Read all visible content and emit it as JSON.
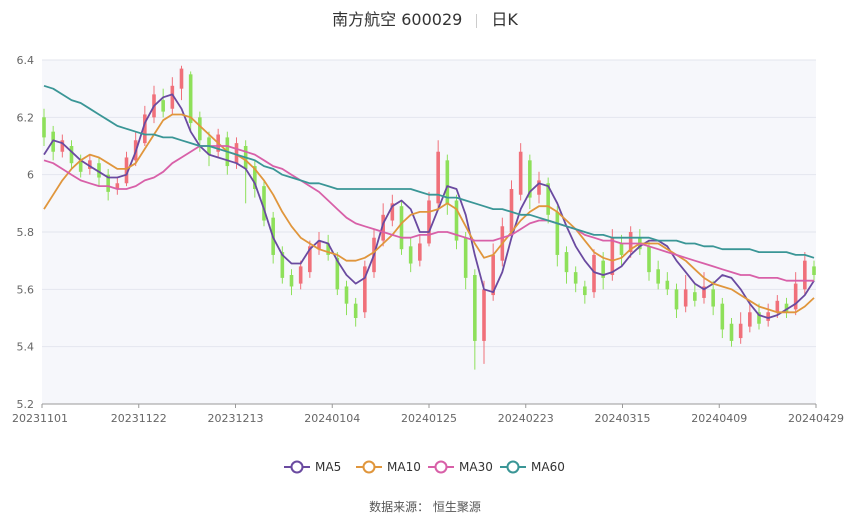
{
  "header": {
    "title": "南方航空 600029",
    "period": "日K"
  },
  "source": {
    "label": "数据来源：",
    "value": "恒生聚源"
  },
  "colors": {
    "up": "#f0707a",
    "down": "#8ee05a",
    "MA5": "#6a4aa0",
    "MA10": "#e0963c",
    "MA30": "#d860a8",
    "MA60": "#3a9696",
    "plot_bg": "#f6f7fb",
    "grid": "#e3e6ee"
  },
  "chart_data": {
    "type": "candlestick",
    "title": "南方航空 600029",
    "period": "日K",
    "x_labels": [
      "20231101",
      "20231122",
      "20231213",
      "20240104",
      "20240125",
      "20240223",
      "20240315",
      "20240409",
      "20240429"
    ],
    "ylim": [
      5.2,
      6.4
    ],
    "y_ticks": [
      "5.2",
      "5.4",
      "5.6",
      "5.8",
      "6",
      "6.2",
      "6.4"
    ],
    "grid": true,
    "legend_position": "bottom",
    "series": [
      {
        "name": "MA5",
        "values": [
          6.07,
          6.12,
          6.11,
          6.08,
          6.05,
          6.03,
          6.01,
          5.99,
          5.99,
          6.0,
          6.08,
          6.18,
          6.24,
          6.27,
          6.28,
          6.23,
          6.15,
          6.1,
          6.07,
          6.06,
          6.05,
          6.04,
          6.02,
          5.97,
          5.88,
          5.78,
          5.72,
          5.69,
          5.69,
          5.74,
          5.77,
          5.76,
          5.7,
          5.65,
          5.62,
          5.64,
          5.72,
          5.83,
          5.89,
          5.91,
          5.88,
          5.8,
          5.8,
          5.88,
          5.96,
          5.95,
          5.86,
          5.72,
          5.6,
          5.59,
          5.66,
          5.78,
          5.88,
          5.94,
          5.97,
          5.96,
          5.9,
          5.82,
          5.75,
          5.7,
          5.66,
          5.65,
          5.66,
          5.68,
          5.72,
          5.75,
          5.77,
          5.77,
          5.75,
          5.7,
          5.66,
          5.62,
          5.6,
          5.62,
          5.65,
          5.64,
          5.6,
          5.55,
          5.51,
          5.5,
          5.51,
          5.53,
          5.55,
          5.58,
          5.63
        ]
      },
      {
        "name": "MA10",
        "values": [
          5.88,
          5.93,
          5.98,
          6.02,
          6.05,
          6.07,
          6.06,
          6.04,
          6.02,
          6.02,
          6.04,
          6.09,
          6.14,
          6.19,
          6.21,
          6.21,
          6.2,
          6.17,
          6.14,
          6.11,
          6.08,
          6.07,
          6.05,
          6.02,
          5.98,
          5.93,
          5.87,
          5.82,
          5.78,
          5.76,
          5.74,
          5.73,
          5.72,
          5.7,
          5.7,
          5.71,
          5.73,
          5.76,
          5.79,
          5.83,
          5.86,
          5.87,
          5.87,
          5.88,
          5.9,
          5.88,
          5.82,
          5.76,
          5.71,
          5.72,
          5.76,
          5.8,
          5.84,
          5.87,
          5.89,
          5.89,
          5.87,
          5.84,
          5.81,
          5.77,
          5.73,
          5.71,
          5.7,
          5.71,
          5.74,
          5.76,
          5.76,
          5.76,
          5.74,
          5.72,
          5.7,
          5.67,
          5.64,
          5.62,
          5.61,
          5.6,
          5.58,
          5.56,
          5.54,
          5.53,
          5.52,
          5.52,
          5.52,
          5.54,
          5.57
        ]
      },
      {
        "name": "MA30",
        "values": [
          6.05,
          6.04,
          6.02,
          6.0,
          5.98,
          5.97,
          5.96,
          5.96,
          5.95,
          5.95,
          5.96,
          5.98,
          5.99,
          6.01,
          6.04,
          6.06,
          6.08,
          6.1,
          6.1,
          6.1,
          6.1,
          6.09,
          6.08,
          6.07,
          6.05,
          6.03,
          6.02,
          6.0,
          5.98,
          5.96,
          5.94,
          5.91,
          5.88,
          5.85,
          5.83,
          5.82,
          5.81,
          5.8,
          5.79,
          5.78,
          5.78,
          5.79,
          5.79,
          5.8,
          5.8,
          5.79,
          5.78,
          5.77,
          5.77,
          5.77,
          5.78,
          5.79,
          5.81,
          5.83,
          5.84,
          5.84,
          5.83,
          5.82,
          5.81,
          5.79,
          5.78,
          5.77,
          5.77,
          5.76,
          5.76,
          5.76,
          5.75,
          5.74,
          5.73,
          5.72,
          5.71,
          5.7,
          5.69,
          5.68,
          5.67,
          5.66,
          5.65,
          5.65,
          5.64,
          5.64,
          5.64,
          5.63,
          5.63,
          5.63,
          5.63
        ]
      },
      {
        "name": "MA60",
        "values": [
          6.31,
          6.3,
          6.28,
          6.26,
          6.25,
          6.23,
          6.21,
          6.19,
          6.17,
          6.16,
          6.15,
          6.14,
          6.14,
          6.13,
          6.13,
          6.12,
          6.11,
          6.1,
          6.1,
          6.09,
          6.08,
          6.07,
          6.06,
          6.05,
          6.03,
          6.02,
          6.0,
          5.99,
          5.98,
          5.97,
          5.97,
          5.96,
          5.95,
          5.95,
          5.95,
          5.95,
          5.95,
          5.95,
          5.95,
          5.95,
          5.95,
          5.94,
          5.93,
          5.93,
          5.92,
          5.92,
          5.91,
          5.9,
          5.89,
          5.88,
          5.88,
          5.87,
          5.86,
          5.86,
          5.85,
          5.84,
          5.83,
          5.82,
          5.81,
          5.8,
          5.79,
          5.79,
          5.78,
          5.78,
          5.78,
          5.78,
          5.78,
          5.77,
          5.77,
          5.77,
          5.76,
          5.76,
          5.75,
          5.75,
          5.74,
          5.74,
          5.74,
          5.74,
          5.73,
          5.73,
          5.73,
          5.73,
          5.72,
          5.72,
          5.71
        ]
      }
    ],
    "candles": [
      [
        6.2,
        6.13,
        6.23,
        6.1
      ],
      [
        6.15,
        6.08,
        6.17,
        6.05
      ],
      [
        6.08,
        6.12,
        6.14,
        6.06
      ],
      [
        6.1,
        6.04,
        6.12,
        6.02
      ],
      [
        6.05,
        6.01,
        6.07,
        5.99
      ],
      [
        6.02,
        6.05,
        6.07,
        6.0
      ],
      [
        6.04,
        5.99,
        6.06,
        5.96
      ],
      [
        6.0,
        5.94,
        6.02,
        5.91
      ],
      [
        5.95,
        5.97,
        5.99,
        5.93
      ],
      [
        5.97,
        6.06,
        6.08,
        5.96
      ],
      [
        6.05,
        6.12,
        6.15,
        6.03
      ],
      [
        6.11,
        6.21,
        6.24,
        6.1
      ],
      [
        6.2,
        6.28,
        6.31,
        6.18
      ],
      [
        6.26,
        6.22,
        6.3,
        6.2
      ],
      [
        6.23,
        6.31,
        6.34,
        6.21
      ],
      [
        6.3,
        6.37,
        6.38,
        6.26
      ],
      [
        6.35,
        6.18,
        6.36,
        6.15
      ],
      [
        6.2,
        6.12,
        6.22,
        6.08
      ],
      [
        6.13,
        6.07,
        6.15,
        6.03
      ],
      [
        6.08,
        6.14,
        6.16,
        6.06
      ],
      [
        6.13,
        6.03,
        6.15,
        6.0
      ],
      [
        6.04,
        6.11,
        6.13,
        6.02
      ],
      [
        6.1,
        6.02,
        6.12,
        5.9
      ],
      [
        6.03,
        5.95,
        6.05,
        5.92
      ],
      [
        5.96,
        5.84,
        5.98,
        5.82
      ],
      [
        5.85,
        5.72,
        5.87,
        5.69
      ],
      [
        5.73,
        5.64,
        5.75,
        5.62
      ],
      [
        5.65,
        5.61,
        5.67,
        5.58
      ],
      [
        5.62,
        5.68,
        5.7,
        5.6
      ],
      [
        5.66,
        5.75,
        5.77,
        5.64
      ],
      [
        5.74,
        5.77,
        5.8,
        5.72
      ],
      [
        5.76,
        5.72,
        5.79,
        5.7
      ],
      [
        5.71,
        5.6,
        5.73,
        5.58
      ],
      [
        5.61,
        5.55,
        5.63,
        5.51
      ],
      [
        5.55,
        5.5,
        5.57,
        5.47
      ],
      [
        5.52,
        5.68,
        5.7,
        5.5
      ],
      [
        5.66,
        5.78,
        5.81,
        5.64
      ],
      [
        5.77,
        5.86,
        5.9,
        5.75
      ],
      [
        5.84,
        5.9,
        5.93,
        5.82
      ],
      [
        5.89,
        5.74,
        5.91,
        5.72
      ],
      [
        5.75,
        5.69,
        5.78,
        5.66
      ],
      [
        5.7,
        5.76,
        5.79,
        5.68
      ],
      [
        5.76,
        5.91,
        5.94,
        5.75
      ],
      [
        5.9,
        6.08,
        6.12,
        5.88
      ],
      [
        6.05,
        5.9,
        6.07,
        5.86
      ],
      [
        5.91,
        5.77,
        5.93,
        5.74
      ],
      [
        5.78,
        5.64,
        5.8,
        5.6
      ],
      [
        5.65,
        5.42,
        5.67,
        5.32
      ],
      [
        5.42,
        5.6,
        5.63,
        5.34
      ],
      [
        5.58,
        5.72,
        5.76,
        5.56
      ],
      [
        5.7,
        5.82,
        5.85,
        5.68
      ],
      [
        5.8,
        5.95,
        5.98,
        5.78
      ],
      [
        5.93,
        6.08,
        6.11,
        5.91
      ],
      [
        6.05,
        5.92,
        6.07,
        5.88
      ],
      [
        5.93,
        5.98,
        6.01,
        5.9
      ],
      [
        5.97,
        5.86,
        5.99,
        5.83
      ],
      [
        5.87,
        5.72,
        5.89,
        5.68
      ],
      [
        5.73,
        5.66,
        5.75,
        5.62
      ],
      [
        5.66,
        5.62,
        5.68,
        5.59
      ],
      [
        5.61,
        5.58,
        5.63,
        5.55
      ],
      [
        5.59,
        5.72,
        5.74,
        5.57
      ],
      [
        5.7,
        5.64,
        5.73,
        5.6
      ],
      [
        5.65,
        5.78,
        5.81,
        5.63
      ],
      [
        5.76,
        5.72,
        5.79,
        5.68
      ],
      [
        5.73,
        5.8,
        5.82,
        5.71
      ],
      [
        5.78,
        5.74,
        5.81,
        5.72
      ],
      [
        5.75,
        5.66,
        5.77,
        5.63
      ],
      [
        5.67,
        5.62,
        5.7,
        5.6
      ],
      [
        5.63,
        5.6,
        5.66,
        5.58
      ],
      [
        5.6,
        5.53,
        5.62,
        5.5
      ],
      [
        5.54,
        5.6,
        5.65,
        5.52
      ],
      [
        5.59,
        5.56,
        5.62,
        5.54
      ],
      [
        5.57,
        5.61,
        5.66,
        5.55
      ],
      [
        5.6,
        5.54,
        5.63,
        5.51
      ],
      [
        5.55,
        5.46,
        5.57,
        5.43
      ],
      [
        5.48,
        5.42,
        5.5,
        5.4
      ],
      [
        5.43,
        5.48,
        5.52,
        5.41
      ],
      [
        5.47,
        5.52,
        5.56,
        5.45
      ],
      [
        5.52,
        5.48,
        5.55,
        5.46
      ],
      [
        5.49,
        5.52,
        5.55,
        5.47
      ],
      [
        5.52,
        5.56,
        5.58,
        5.5
      ],
      [
        5.55,
        5.52,
        5.57,
        5.5
      ],
      [
        5.53,
        5.62,
        5.66,
        5.51
      ],
      [
        5.6,
        5.7,
        5.73,
        5.58
      ],
      [
        5.68,
        5.65,
        5.7,
        5.63
      ]
    ]
  }
}
